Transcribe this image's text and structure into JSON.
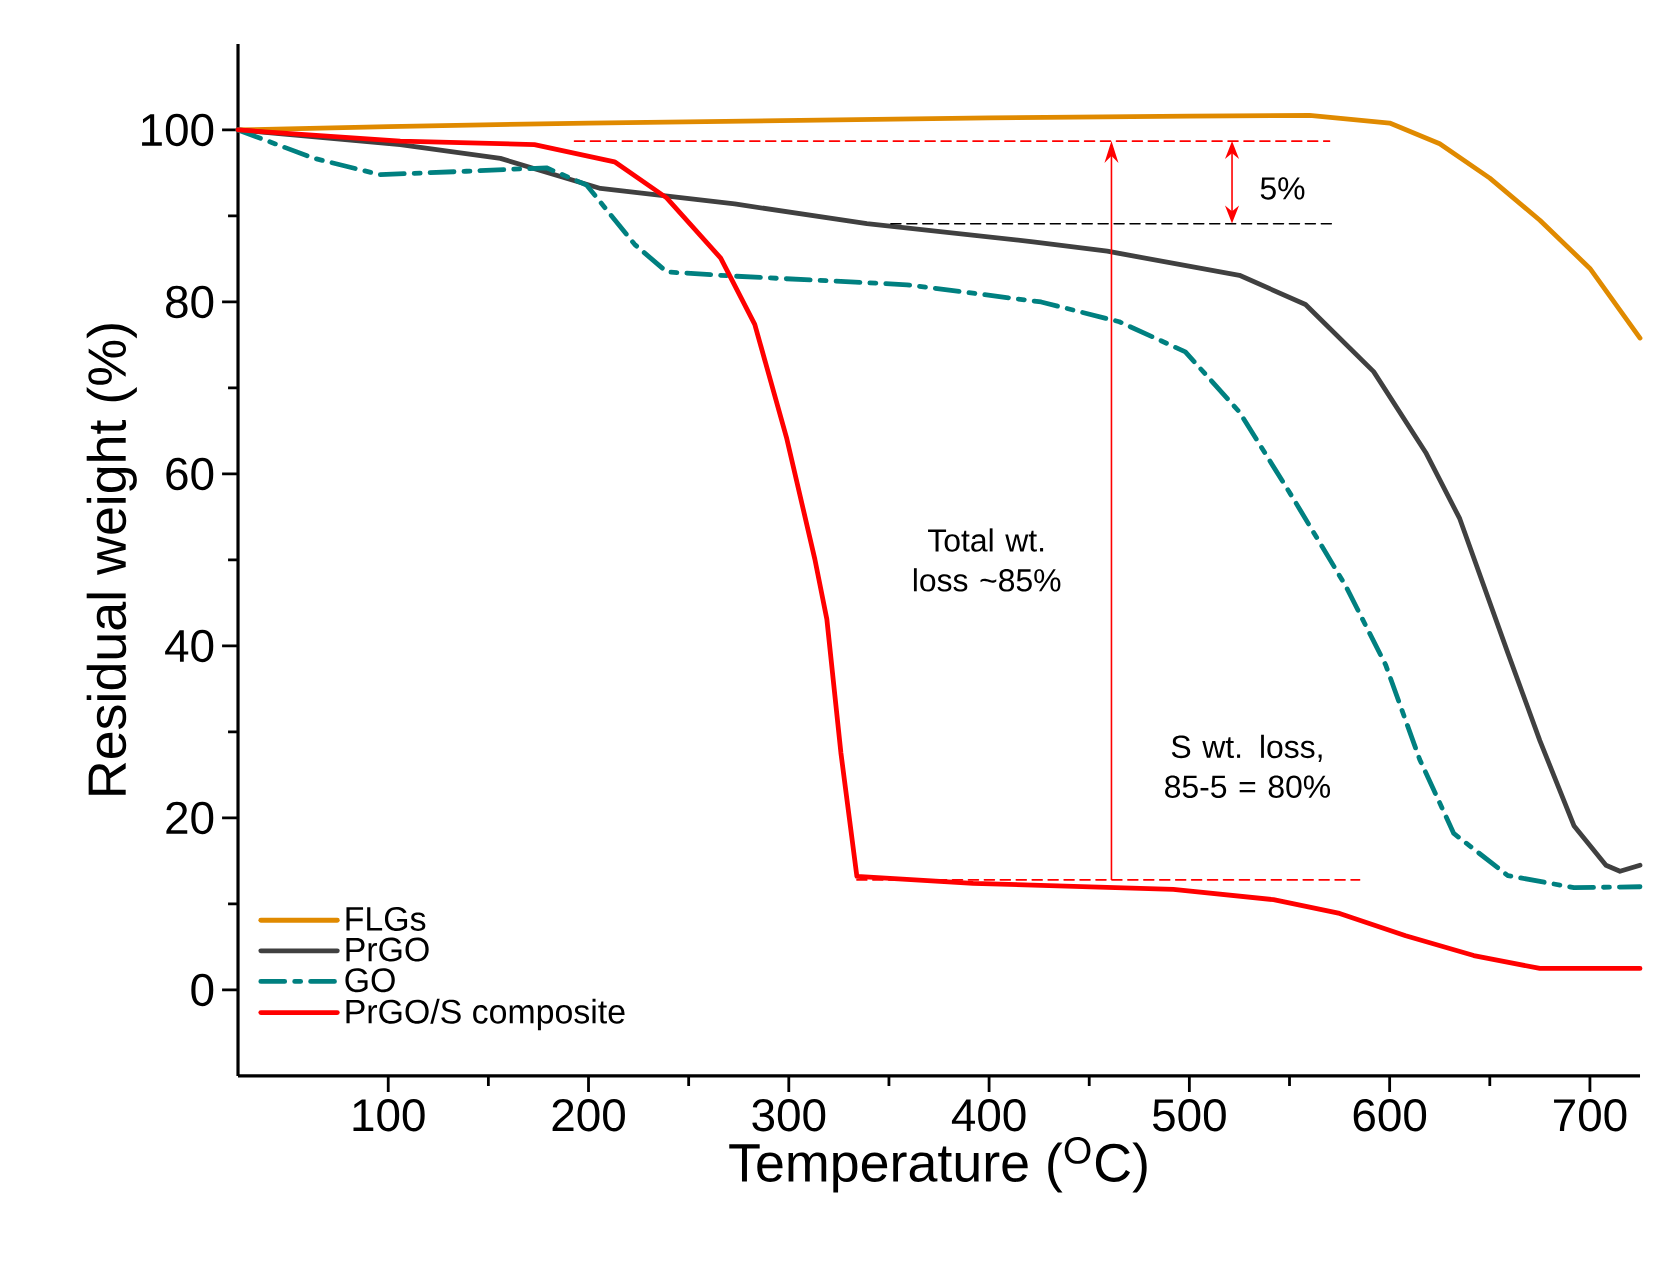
{
  "chart_data": {
    "type": "line",
    "xlabel": "Temperature ($^{O}$C)",
    "ylabel": "Residual weight (%)",
    "xlim": [
      25,
      725
    ],
    "ylim": [
      -10,
      110
    ],
    "xticks": [
      100,
      200,
      300,
      400,
      500,
      600,
      700
    ],
    "yticks": [
      0,
      20,
      40,
      60,
      80,
      100
    ],
    "legend": "bottom left",
    "series": [
      {
        "name": "FLGs",
        "color": "#e08a00",
        "x": [
          25,
          100,
          200,
          300,
          400,
          500,
          560,
          600,
          625,
          650,
          675,
          700,
          725
        ],
        "values": [
          100,
          100.4,
          100.8,
          101.1,
          101.4,
          101.6,
          101.7,
          100.8,
          98.4,
          94.4,
          89.5,
          83.9,
          75.8
        ]
      },
      {
        "name": "PrGO",
        "color": "#404040",
        "x": [
          25,
          106,
          156,
          206,
          273,
          339,
          422,
          459,
          525,
          558,
          592,
          618,
          635,
          659,
          675,
          692,
          708,
          715,
          725
        ],
        "values": [
          100,
          98.3,
          96.7,
          93.2,
          91.4,
          89.1,
          87.0,
          85.9,
          83.1,
          79.7,
          71.9,
          62.5,
          54.8,
          39.2,
          29,
          19.1,
          14.5,
          13.8,
          14.5
        ]
      },
      {
        "name": "GO",
        "color": "#008080",
        "line_style": "dashdot",
        "x": [
          25,
          63,
          96,
          139,
          179,
          199,
          223,
          239,
          273,
          359,
          426,
          465,
          498,
          525,
          552,
          578,
          598,
          615,
          632,
          659,
          692,
          725
        ],
        "values": [
          100,
          96.7,
          94.8,
          95.2,
          95.6,
          93.6,
          86.7,
          83.5,
          83.0,
          82.0,
          80.0,
          77.7,
          74.2,
          67.2,
          57.1,
          47,
          37.8,
          26.8,
          18.2,
          13.3,
          11.9,
          12
        ]
      },
      {
        "name": "PrGO/S composite",
        "color": "#ff0000",
        "x": [
          25,
          106,
          173,
          213,
          239,
          266,
          283,
          299,
          313,
          319,
          326,
          334,
          392,
          492,
          542,
          575,
          608,
          642,
          675,
          725
        ],
        "values": [
          100,
          98.7,
          98.3,
          96.3,
          92.1,
          85.1,
          77.4,
          64.1,
          50.1,
          43.1,
          27.6,
          13.2,
          12.4,
          11.7,
          10.5,
          8.9,
          6.3,
          4.0,
          2.5,
          2.5
        ]
      },
      {
        "color": "#ff0000",
        "line_style": "dashed",
        "x": [
          193,
          570
        ],
        "values": [
          98.7,
          98.7
        ]
      },
      {
        "color": "#000000",
        "line_style": "dashed",
        "x": [
          351,
          573
        ],
        "values": [
          89.1,
          89.1
        ]
      },
      {
        "color": "#ff0000",
        "line_style": "dashed",
        "x": [
          334,
          585
        ],
        "values": [
          12.8,
          12.8
        ]
      }
    ],
    "annotations": [
      "Total wt. loss ~85%",
      "S wt. loss, 85-5 = 80%",
      "5%"
    ]
  }
}
